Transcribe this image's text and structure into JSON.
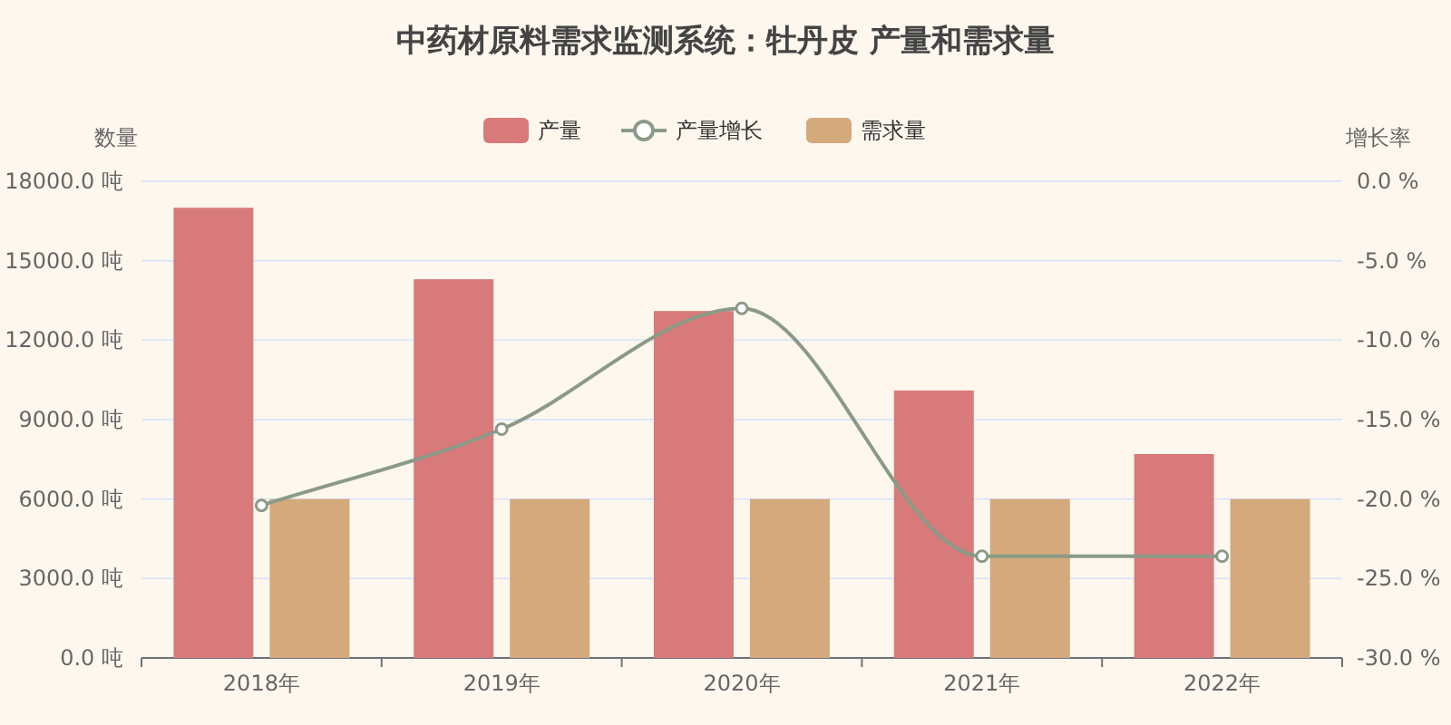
{
  "chart_data": {
    "type": "bar",
    "title": "中药材原料需求监测系统：牡丹皮 产量和需求量",
    "ylabel": "数量",
    "y2label": "增长率",
    "categories": [
      "2018年",
      "2019年",
      "2020年",
      "2021年",
      "2022年"
    ],
    "series": [
      {
        "name": "产量",
        "color": "#d97a7a",
        "values": [
          17000,
          14300,
          13100,
          10100,
          7700
        ]
      },
      {
        "name": "产量增长",
        "type": "line",
        "axis": "y2",
        "color": "#8a9a88",
        "marker": "circle",
        "values": [
          -20.4,
          -15.6,
          -8.0,
          -23.6,
          -23.6
        ]
      },
      {
        "name": "需求量",
        "color": "#d4a97c",
        "values": [
          6000,
          6000,
          6000,
          6000,
          6000
        ]
      }
    ],
    "ylim": [
      0,
      18000
    ],
    "yticks": [
      {
        "value": 0,
        "label": "0.0 吨"
      },
      {
        "value": 3000,
        "label": "3000.0 吨"
      },
      {
        "value": 6000,
        "label": "6000.0 吨"
      },
      {
        "value": 9000,
        "label": "9000.0 吨"
      },
      {
        "value": 12000,
        "label": "12000.0 吨"
      },
      {
        "value": 15000,
        "label": "15000.0 吨"
      },
      {
        "value": 18000,
        "label": "18000.0 吨"
      }
    ],
    "y2lim": [
      -30,
      0
    ],
    "y2ticks": [
      {
        "value": 0,
        "label": "0.0 %"
      },
      {
        "value": -5,
        "label": "-5.0 %"
      },
      {
        "value": -10,
        "label": "-10.0 %"
      },
      {
        "value": -15,
        "label": "-15.0 %"
      },
      {
        "value": -20,
        "label": "-20.0 %"
      },
      {
        "value": -25,
        "label": "-25.0 %"
      },
      {
        "value": -30,
        "label": "-30.0 %"
      }
    ],
    "grid": "y",
    "legend": "top"
  }
}
